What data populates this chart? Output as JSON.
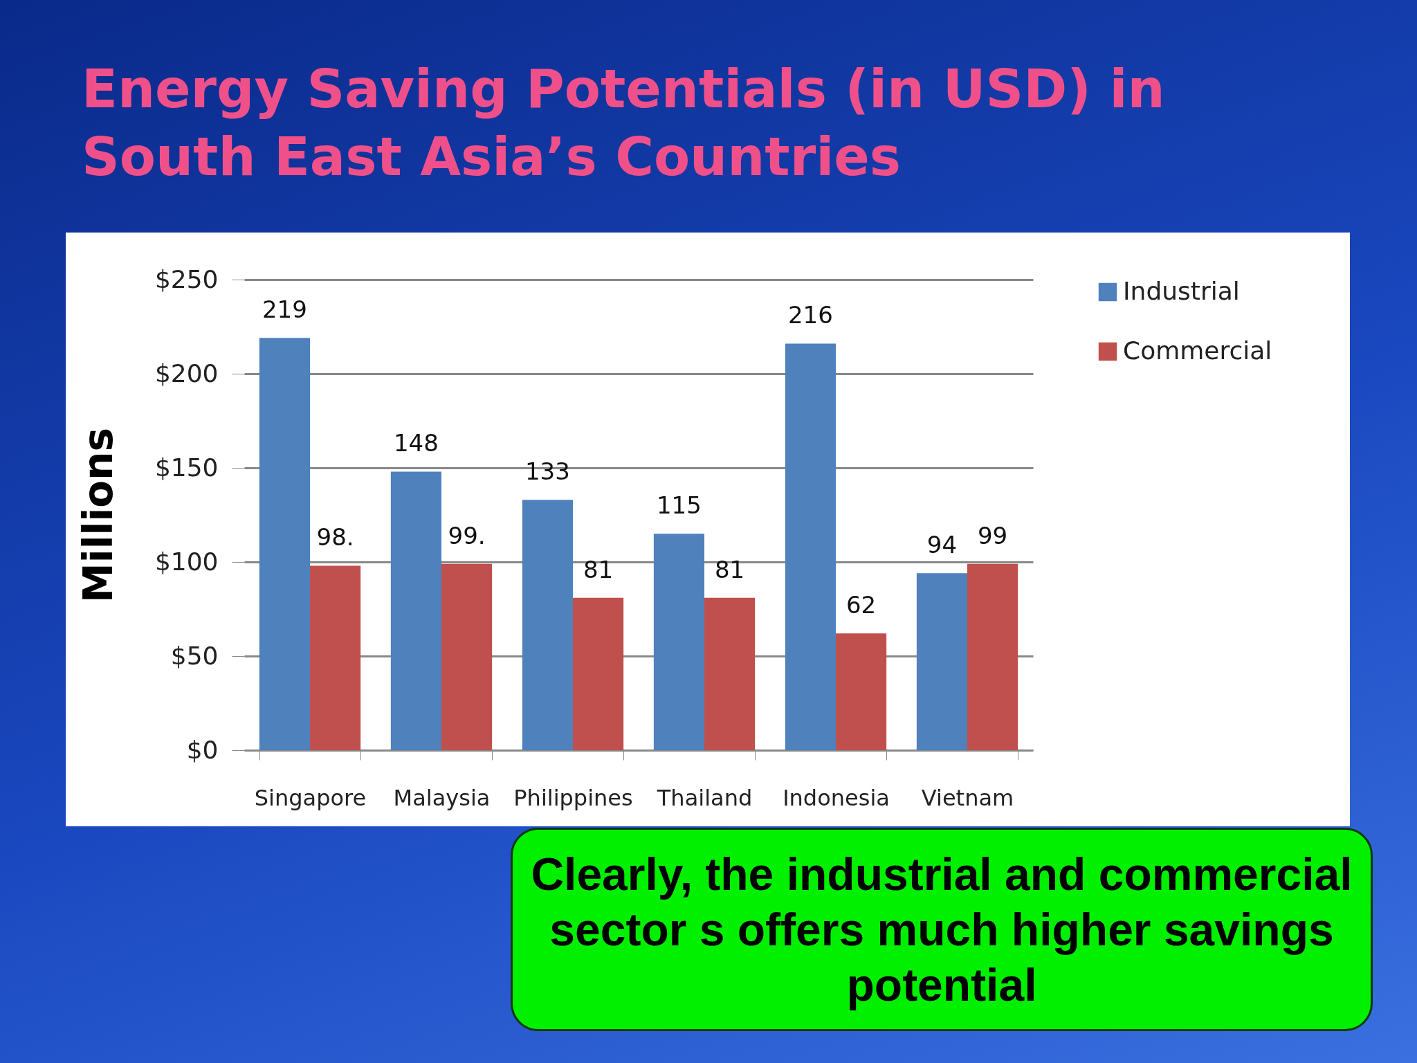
{
  "chart_data": {
    "type": "bar",
    "title": "Energy Saving Potentials (in USD) in South East Asia’s Countries",
    "ylabel": "Millions",
    "categories": [
      "Singapore",
      "Malaysia",
      "Philippines",
      "Thailand",
      "Indonesia",
      "Vietnam"
    ],
    "series": [
      {
        "name": "Industrial",
        "color": "#4f81bd",
        "values": [
          219,
          148,
          133,
          115,
          216,
          94
        ],
        "value_labels": [
          "219",
          "148",
          "133",
          "115",
          "216",
          "94"
        ]
      },
      {
        "name": "Commercial",
        "color": "#c0504d",
        "values": [
          98,
          99,
          81,
          81,
          62,
          99
        ],
        "value_labels": [
          "98.",
          "99.",
          "81",
          "81",
          "62",
          "99"
        ]
      }
    ],
    "ylim": [
      0,
      250
    ],
    "yticks": [
      {
        "value": 0,
        "label": "$0"
      },
      {
        "value": 50,
        "label": "$50"
      },
      {
        "value": 100,
        "label": "$100"
      },
      {
        "value": 150,
        "label": "$150"
      },
      {
        "value": 200,
        "label": "$200"
      },
      {
        "value": 250,
        "label": "$250"
      }
    ],
    "grid": "y",
    "legend": "right",
    "annotations": [
      "Clearly, the industrial and commercial sector s offers much higher savings potential"
    ]
  }
}
